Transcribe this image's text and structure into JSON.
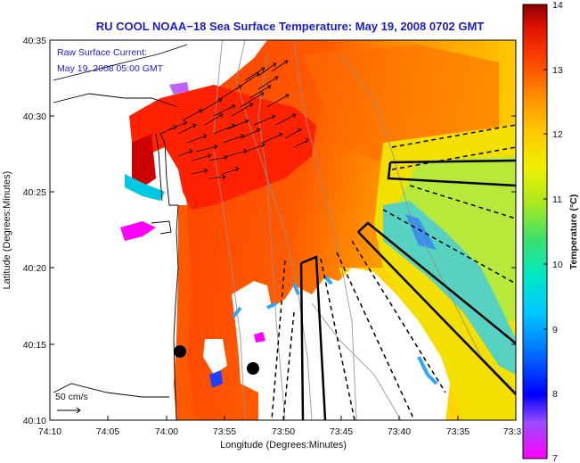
{
  "title": "RU COOL  NOAA−18  Sea Surface Temperature:  May 19, 2008 0702 GMT",
  "current_label": {
    "line1": "Raw Surface Current:",
    "line2": "May 19, 2008 05:00 GMT"
  },
  "scale_label": "50 cm/s",
  "x_axis": {
    "label": "Longitude (Degrees:Minutes)",
    "ticks": [
      "74:10",
      "74:05",
      "74:00",
      "73:55",
      "73:50",
      "73:45",
      "73:40",
      "73:35",
      "73:3"
    ]
  },
  "y_axis": {
    "label": "Latitude (Degrees:Minutes)",
    "ticks": [
      "40:35",
      "40:30",
      "40:25",
      "40:20",
      "40:15",
      "40:10"
    ]
  },
  "colorbar": {
    "label": "Temperature (°C)",
    "ticks": [
      "14",
      "13",
      "12",
      "11",
      "10",
      "9",
      "8",
      "7"
    ],
    "min": 7,
    "max": 14
  },
  "colors": {
    "title": "#1c1cc8",
    "land": "#ffffff",
    "ocean_warm": "#ff4a00",
    "ocean_cool": "#ffd000"
  }
}
